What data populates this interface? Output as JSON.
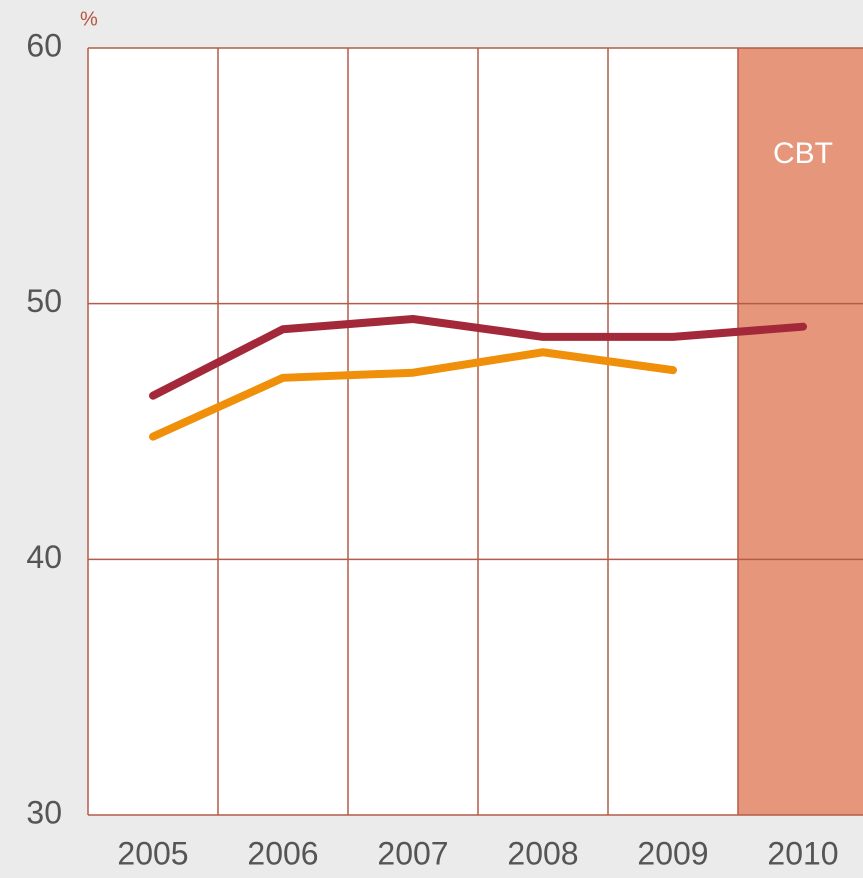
{
  "chart_data": {
    "type": "line",
    "y_label": "%",
    "categories": [
      "2005",
      "2006",
      "2007",
      "2008",
      "2009",
      "2010"
    ],
    "series": [
      {
        "color": "#a3293a",
        "values": [
          46.4,
          49.0,
          49.4,
          48.7,
          48.7,
          49.1
        ]
      },
      {
        "color": "#f0900a",
        "values": [
          44.8,
          47.1,
          47.3,
          48.1,
          47.4,
          null
        ]
      }
    ],
    "ylim": [
      30,
      60
    ],
    "yticks": [
      30,
      40,
      50,
      60
    ],
    "grid": true,
    "grid_color": "#b35c48",
    "highlight": {
      "category_index": 5,
      "label": "CBT",
      "color": "#e5967b"
    }
  }
}
